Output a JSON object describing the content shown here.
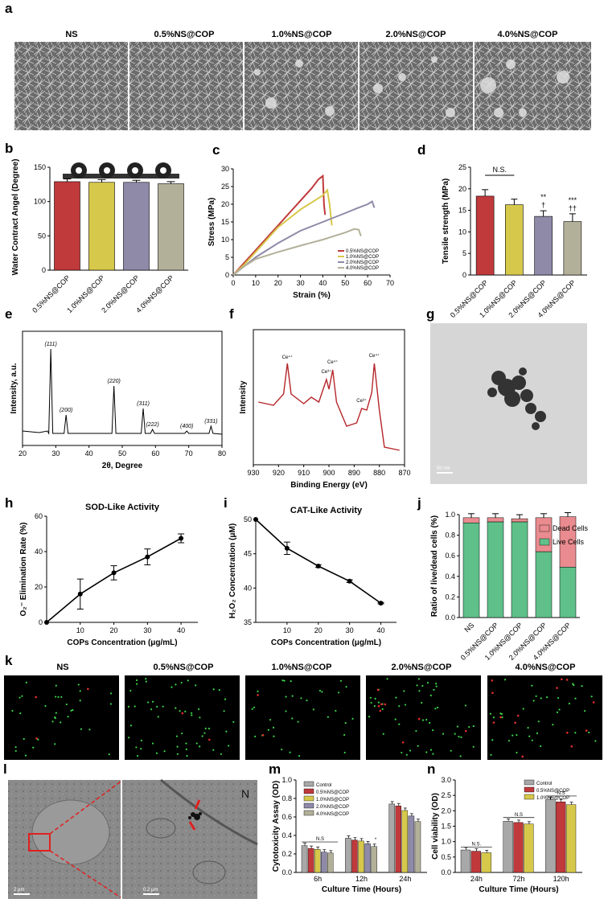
{
  "panels": {
    "a": {
      "label": "a",
      "headers": [
        "NS",
        "0.5%NS@COP",
        "1.0%NS@COP",
        "2.0%NS@COP",
        "4.0%NS@COP"
      ]
    },
    "b": {
      "label": "b"
    },
    "c": {
      "label": "c"
    },
    "d": {
      "label": "d"
    },
    "e": {
      "label": "e"
    },
    "f": {
      "label": "f"
    },
    "g": {
      "label": "g",
      "scale": "50 nm"
    },
    "h": {
      "label": "h"
    },
    "i": {
      "label": "i"
    },
    "j": {
      "label": "j"
    },
    "k": {
      "label": "k",
      "headers": [
        "NS",
        "0.5%NS@COP",
        "1.0%NS@COP",
        "2.0%NS@COP",
        "4.0%NS@COP"
      ]
    },
    "l": {
      "label": "l",
      "scale_left": "2 μm",
      "scale_right": "0.2 μm",
      "n_label": "N"
    },
    "m": {
      "label": "m"
    },
    "n": {
      "label": "n"
    }
  },
  "colors": {
    "c1": "#c0393b",
    "c2": "#d6c84a",
    "c3": "#8e8aa8",
    "c4": "#b3b09a",
    "green": "#5fc08a",
    "pink": "#e98b8f",
    "xps": "#b5262a",
    "grey": "#a8a8a8"
  },
  "chart_data": [
    {
      "panel": "b",
      "type": "bar",
      "categories": [
        "0.5%NS@COP",
        "1.0%NS@COP",
        "2.0%NS@COP",
        "4.0%NS@COP"
      ],
      "values": [
        129,
        128,
        128,
        126
      ],
      "errors": [
        4,
        4,
        3,
        3
      ],
      "ylabel": "Water Contract Angel (Degree)",
      "ylim": [
        0,
        150
      ],
      "yticks": [
        0,
        50,
        100,
        150
      ]
    },
    {
      "panel": "c",
      "type": "line",
      "xlabel": "Strain (%)",
      "ylabel": "Stress (MPa)",
      "xlim": [
        0,
        70
      ],
      "ylim": [
        0,
        30
      ],
      "xticks": [
        0,
        10,
        20,
        30,
        40,
        50,
        60,
        70
      ],
      "yticks": [
        0,
        5,
        10,
        15,
        20,
        25,
        30
      ],
      "series": [
        {
          "name": "0.5%NS@COP",
          "x": [
            0,
            5,
            10,
            15,
            20,
            25,
            30,
            35,
            38,
            40,
            40.5,
            41
          ],
          "y": [
            0,
            3.5,
            7,
            10.5,
            14,
            17.5,
            21,
            24.5,
            27,
            28,
            20,
            17
          ]
        },
        {
          "name": "1.0%NS@COP",
          "x": [
            0,
            5,
            10,
            15,
            20,
            25,
            30,
            35,
            40,
            42,
            43,
            44
          ],
          "y": [
            0,
            3,
            6.5,
            10,
            13.5,
            16,
            18.5,
            20.5,
            22.5,
            24,
            20,
            14
          ]
        },
        {
          "name": "2.0%NS@COP",
          "x": [
            0,
            5,
            10,
            20,
            30,
            40,
            50,
            55,
            60,
            62,
            63
          ],
          "y": [
            0,
            2.5,
            5,
            9,
            12.5,
            15,
            17.5,
            18.8,
            20,
            20.8,
            19
          ]
        },
        {
          "name": "4.0%NS@COP",
          "x": [
            0,
            5,
            10,
            20,
            30,
            40,
            50,
            54,
            56,
            57
          ],
          "y": [
            0,
            2.5,
            4.5,
            6.5,
            8.3,
            10,
            12,
            13,
            12.8,
            11
          ]
        }
      ]
    },
    {
      "panel": "d",
      "type": "bar",
      "categories": [
        "0.5%NS@COP",
        "1.0%NS@COP",
        "2.0%NS@COP",
        "4.0%NS@COP"
      ],
      "values": [
        18.3,
        16.3,
        13.6,
        12.4
      ],
      "errors": [
        1.5,
        1.3,
        1.3,
        1.8
      ],
      "ylabel": "Tensile strength (MPa)",
      "ylim": [
        0,
        25
      ],
      "yticks": [
        0,
        5,
        10,
        15,
        20,
        25
      ],
      "annotations": [
        "N.S.",
        "**",
        "†",
        "***",
        "††"
      ]
    },
    {
      "panel": "e",
      "type": "line",
      "xlabel": "2θ, Degree",
      "ylabel": "Intensity, a.u.",
      "xlim": [
        20,
        80
      ],
      "xticks": [
        20,
        30,
        40,
        50,
        60,
        70,
        80
      ],
      "peaks": [
        {
          "x": 28.5,
          "label": "(111)"
        },
        {
          "x": 33.1,
          "label": "(200)"
        },
        {
          "x": 47.5,
          "label": "(220)"
        },
        {
          "x": 56.3,
          "label": "(311)"
        },
        {
          "x": 59.1,
          "label": "(222)"
        },
        {
          "x": 69.4,
          "label": "(400)"
        },
        {
          "x": 76.7,
          "label": "(331)"
        }
      ]
    },
    {
      "panel": "f",
      "type": "line",
      "xlabel": "Binding Energy (eV)",
      "ylabel": "Intensity",
      "xlim": [
        930,
        870
      ],
      "xticks": [
        930,
        920,
        910,
        900,
        890,
        880,
        870
      ],
      "annotations": [
        "Ce⁴⁺",
        "Ce³⁺",
        "Ce⁴⁺",
        "Ce³⁺",
        "Ce⁴⁺"
      ]
    },
    {
      "panel": "h",
      "type": "line",
      "title": "SOD-Like Activity",
      "xlabel": "COPs Concentration (μg/mL)",
      "ylabel": "O₂⁻ Elimination Rate (%)",
      "x": [
        0,
        10,
        20,
        30,
        40
      ],
      "y": [
        0,
        16,
        28,
        37,
        47.5
      ],
      "errors": [
        0,
        8.5,
        4,
        4.5,
        2.5
      ],
      "ylim": [
        0,
        60
      ],
      "yticks": [
        0,
        20,
        40,
        60
      ],
      "xticks": [
        10,
        20,
        30,
        40
      ]
    },
    {
      "panel": "i",
      "type": "line",
      "title": "CAT-Like Activity",
      "xlabel": "COPs Concentration (μg/mL)",
      "ylabel": "H₂O₂ Concentration (μM)",
      "x": [
        0,
        10,
        20,
        30,
        40
      ],
      "y": [
        50,
        45.8,
        43.2,
        41,
        37.8
      ],
      "errors": [
        0,
        0.9,
        0.2,
        0.2,
        0.1
      ],
      "ylim": [
        35,
        50
      ],
      "yticks": [
        35,
        40,
        45,
        50
      ],
      "xticks": [
        10,
        20,
        30,
        40
      ]
    },
    {
      "panel": "j",
      "type": "bar",
      "categories": [
        "NS",
        "0.5%NS@COP",
        "1.0%NS@COP",
        "2.0%NS@COP",
        "4.0%NS@COP"
      ],
      "ylabel": "Ratio of live/dead cells (%)",
      "ylim": [
        0,
        1.0
      ],
      "yticks": [
        0,
        0.2,
        0.4,
        0.6,
        0.8,
        1.0
      ],
      "series": [
        {
          "name": "Live Cells",
          "values": [
            0.92,
            0.93,
            0.93,
            0.64,
            0.49
          ]
        },
        {
          "name": "Dead Cells",
          "values": [
            0.05,
            0.04,
            0.03,
            0.33,
            0.49
          ]
        }
      ]
    },
    {
      "panel": "m",
      "type": "bar",
      "categories": [
        "6h",
        "12h",
        "24h"
      ],
      "xlabel": "Culture Time (Hours)",
      "ylabel": "Cytotoxicity Assay (OD)",
      "ylim": [
        0,
        1.0
      ],
      "yticks": [
        0,
        0.2,
        0.4,
        0.6,
        0.8,
        1.0
      ],
      "series": [
        {
          "name": "Control",
          "values": [
            0.29,
            0.37,
            0.74
          ]
        },
        {
          "name": "0.5%NS@COP",
          "values": [
            0.26,
            0.35,
            0.72
          ]
        },
        {
          "name": "1.0%NS@COP",
          "values": [
            0.25,
            0.34,
            0.67
          ]
        },
        {
          "name": "2.0%NS@COP",
          "values": [
            0.22,
            0.31,
            0.61
          ]
        },
        {
          "name": "4.0%NS@COP",
          "values": [
            0.21,
            0.28,
            0.55
          ]
        }
      ],
      "annotations": [
        "N.S",
        "*"
      ]
    },
    {
      "panel": "n",
      "type": "bar",
      "categories": [
        "24h",
        "72h",
        "120h"
      ],
      "xlabel": "Culture Time (Hours)",
      "ylabel": "Cell viability (OD)",
      "ylim": [
        0,
        3
      ],
      "yticks": [
        0,
        0.5,
        1.0,
        1.5,
        2.0,
        2.5,
        3.0
      ],
      "series": [
        {
          "name": "Control",
          "values": [
            0.73,
            1.66,
            2.36
          ]
        },
        {
          "name": "0.5%NS@COP",
          "values": [
            0.69,
            1.62,
            2.29
          ]
        },
        {
          "name": "1.0%NS@COP",
          "values": [
            0.64,
            1.57,
            2.2
          ]
        }
      ],
      "annotations": [
        "N.S.",
        "N.S",
        "N.S"
      ]
    }
  ]
}
